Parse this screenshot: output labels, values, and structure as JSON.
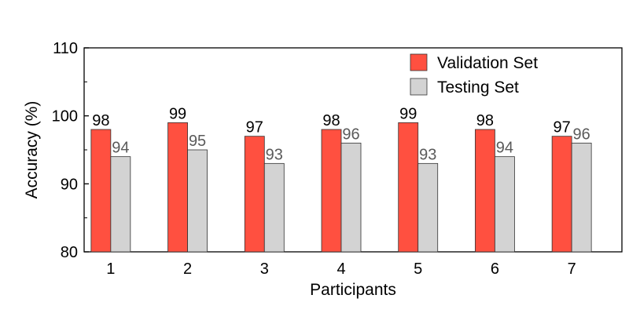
{
  "chart_data": {
    "type": "bar",
    "title": "",
    "xlabel": "Participants",
    "ylabel": "Accuracy (%)",
    "ylim": [
      80,
      110
    ],
    "yticks": [
      80,
      90,
      100,
      110
    ],
    "categories": [
      "1",
      "2",
      "3",
      "4",
      "5",
      "6",
      "7"
    ],
    "series": [
      {
        "name": "Validation Set",
        "values": [
          98,
          99,
          97,
          98,
          99,
          98,
          97
        ],
        "color": "#ff5040",
        "label_color": "#000000"
      },
      {
        "name": "Testing Set",
        "values": [
          94,
          95,
          93,
          96,
          93,
          94,
          96
        ],
        "color": "#d3d3d3",
        "label_color": "#5a5a5a"
      }
    ],
    "legend_position": "top-right",
    "grid": false
  }
}
